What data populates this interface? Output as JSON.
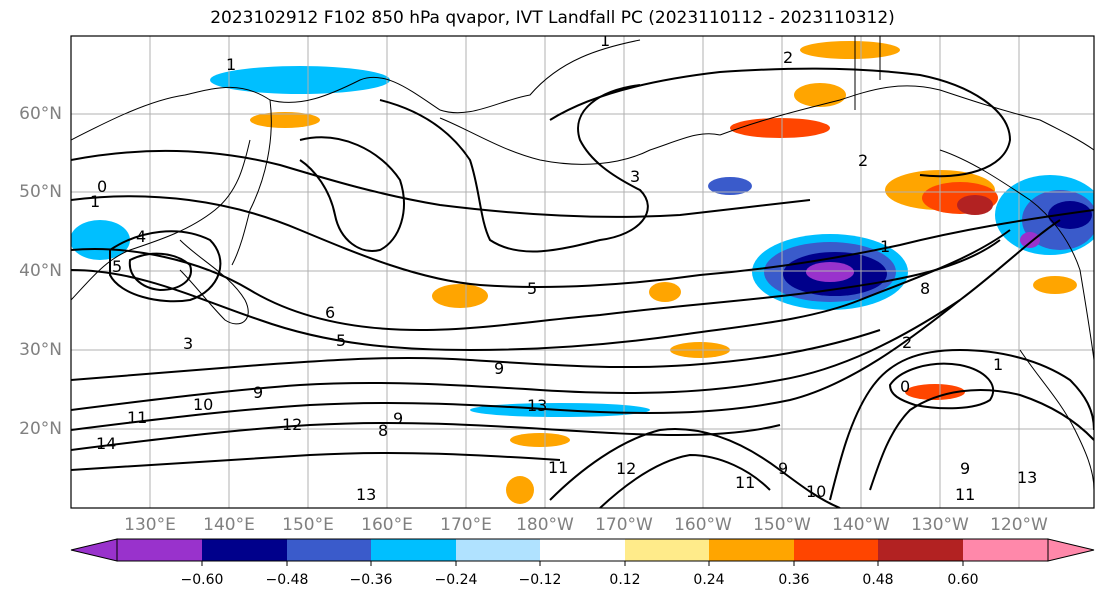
{
  "title": "2023102912 F102 850 hPa qvapor, IVT Landfall PC (2023110112 - 2023110312)",
  "lat_labels": [
    "60°N",
    "50°N",
    "40°N",
    "30°N",
    "20°N"
  ],
  "lon_labels": [
    "130°E",
    "140°E",
    "150°E",
    "160°E",
    "170°E",
    "180°W",
    "170°W",
    "160°W",
    "150°W",
    "140°W",
    "130°W",
    "120°W"
  ],
  "colorbar": {
    "colors": [
      "#9932CC",
      "#00008B",
      "#3A5BCB",
      "#00BFFF",
      "#B0E2FF",
      "#FFFFFF",
      "#FFEB8A",
      "#FFA500",
      "#FF4500",
      "#B22222",
      "#FF88AA"
    ],
    "tick_labels": [
      "−0.60",
      "−0.48",
      "−0.36",
      "−0.24",
      "−0.12",
      "0.12",
      "0.24",
      "0.36",
      "0.48",
      "0.60"
    ]
  },
  "contour_labels": [
    "1",
    "0",
    "1",
    "4",
    "1",
    "5",
    "6",
    "5",
    "3",
    "5",
    "3",
    "2",
    "2",
    "1",
    "0",
    "8",
    "9",
    "10",
    "11",
    "14",
    "12",
    "9",
    "8",
    "9",
    "13",
    "9",
    "11",
    "12",
    "9",
    "11",
    "13",
    "10",
    "11",
    "13",
    "1",
    "2"
  ]
}
